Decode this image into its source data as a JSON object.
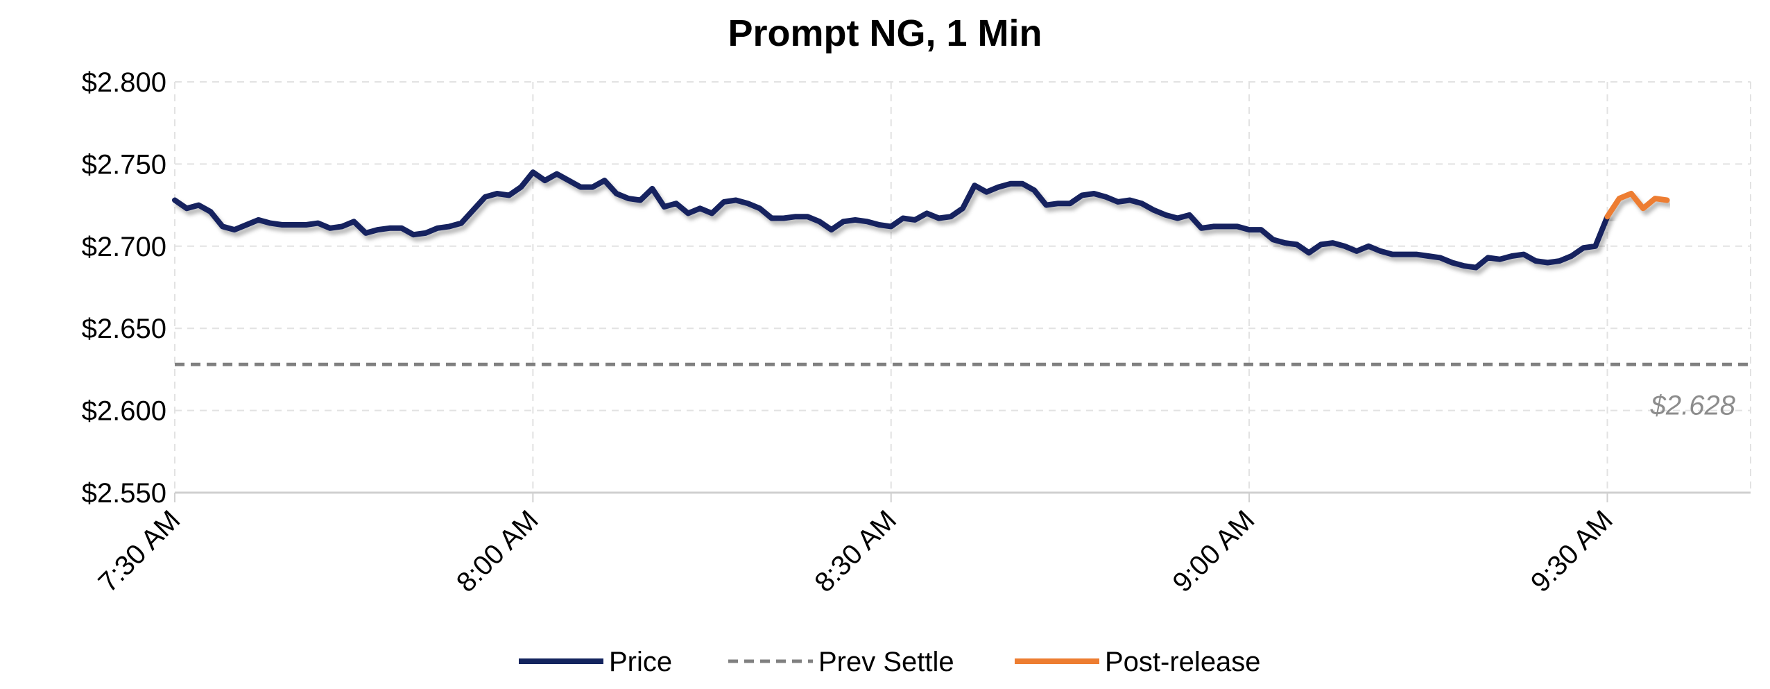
{
  "chart_data": {
    "type": "line",
    "title": "Prompt NG, 1 Min",
    "xlabel": "",
    "ylabel": "",
    "ylim": [
      2.55,
      2.8
    ],
    "yticks": [
      2.8,
      2.75,
      2.7,
      2.65,
      2.6,
      2.55
    ],
    "ytick_labels": [
      "$2.800",
      "$2.750",
      "$2.700",
      "$2.650",
      "$2.600",
      "$2.550"
    ],
    "x_unit": "minutes",
    "xlim": [
      "7:30 AM",
      "9:42 AM"
    ],
    "xticks": [
      "7:30 AM",
      "8:00 AM",
      "8:30 AM",
      "9:00 AM",
      "9:30 AM"
    ],
    "grid": true,
    "legend": "bottom",
    "series": [
      {
        "name": "Price",
        "color": "#14245e",
        "x": [
          "7:30 AM",
          "7:31 AM",
          "7:32 AM",
          "7:33 AM",
          "7:34 AM",
          "7:35 AM",
          "7:36 AM",
          "7:37 AM",
          "7:38 AM",
          "7:39 AM",
          "7:40 AM",
          "7:41 AM",
          "7:42 AM",
          "7:43 AM",
          "7:44 AM",
          "7:45 AM",
          "7:46 AM",
          "7:47 AM",
          "7:48 AM",
          "7:49 AM",
          "7:50 AM",
          "7:51 AM",
          "7:52 AM",
          "7:53 AM",
          "7:54 AM",
          "7:55 AM",
          "7:56 AM",
          "7:57 AM",
          "7:58 AM",
          "7:59 AM",
          "8:00 AM",
          "8:01 AM",
          "8:02 AM",
          "8:03 AM",
          "8:04 AM",
          "8:05 AM",
          "8:06 AM",
          "8:07 AM",
          "8:08 AM",
          "8:09 AM",
          "8:10 AM",
          "8:11 AM",
          "8:12 AM",
          "8:13 AM",
          "8:14 AM",
          "8:15 AM",
          "8:16 AM",
          "8:17 AM",
          "8:18 AM",
          "8:19 AM",
          "8:20 AM",
          "8:21 AM",
          "8:22 AM",
          "8:23 AM",
          "8:24 AM",
          "8:25 AM",
          "8:26 AM",
          "8:27 AM",
          "8:28 AM",
          "8:29 AM",
          "8:30 AM",
          "8:31 AM",
          "8:32 AM",
          "8:33 AM",
          "8:34 AM",
          "8:35 AM",
          "8:36 AM",
          "8:37 AM",
          "8:38 AM",
          "8:39 AM",
          "8:40 AM",
          "8:41 AM",
          "8:42 AM",
          "8:43 AM",
          "8:44 AM",
          "8:45 AM",
          "8:46 AM",
          "8:47 AM",
          "8:48 AM",
          "8:49 AM",
          "8:50 AM",
          "8:51 AM",
          "8:52 AM",
          "8:53 AM",
          "8:54 AM",
          "8:55 AM",
          "8:56 AM",
          "8:57 AM",
          "8:58 AM",
          "8:59 AM",
          "9:00 AM",
          "9:01 AM",
          "9:02 AM",
          "9:03 AM",
          "9:04 AM",
          "9:05 AM",
          "9:06 AM",
          "9:07 AM",
          "9:08 AM",
          "9:09 AM",
          "9:10 AM",
          "9:11 AM",
          "9:12 AM",
          "9:13 AM",
          "9:14 AM",
          "9:15 AM",
          "9:16 AM",
          "9:17 AM",
          "9:18 AM",
          "9:19 AM",
          "9:20 AM",
          "9:21 AM",
          "9:22 AM",
          "9:23 AM",
          "9:24 AM",
          "9:25 AM",
          "9:26 AM",
          "9:27 AM",
          "9:28 AM",
          "9:29 AM",
          "9:30 AM"
        ],
        "values": [
          2.728,
          2.723,
          2.725,
          2.721,
          2.712,
          2.71,
          2.713,
          2.716,
          2.714,
          2.713,
          2.713,
          2.713,
          2.714,
          2.711,
          2.712,
          2.715,
          2.708,
          2.71,
          2.711,
          2.711,
          2.707,
          2.708,
          2.711,
          2.712,
          2.714,
          2.722,
          2.73,
          2.732,
          2.731,
          2.736,
          2.745,
          2.74,
          2.744,
          2.74,
          2.736,
          2.736,
          2.74,
          2.732,
          2.729,
          2.728,
          2.735,
          2.724,
          2.726,
          2.72,
          2.723,
          2.72,
          2.727,
          2.728,
          2.726,
          2.723,
          2.717,
          2.717,
          2.718,
          2.718,
          2.715,
          2.71,
          2.715,
          2.716,
          2.715,
          2.713,
          2.712,
          2.717,
          2.716,
          2.72,
          2.717,
          2.718,
          2.723,
          2.737,
          2.733,
          2.736,
          2.738,
          2.738,
          2.734,
          2.725,
          2.726,
          2.726,
          2.731,
          2.732,
          2.73,
          2.727,
          2.728,
          2.726,
          2.722,
          2.719,
          2.717,
          2.719,
          2.711,
          2.712,
          2.712,
          2.712,
          2.71,
          2.71,
          2.704,
          2.702,
          2.701,
          2.696,
          2.701,
          2.702,
          2.7,
          2.697,
          2.7,
          2.697,
          2.695,
          2.695,
          2.695,
          2.694,
          2.693,
          2.69,
          2.688,
          2.687,
          2.693,
          2.692,
          2.694,
          2.695,
          2.691,
          2.69,
          2.691,
          2.694,
          2.699,
          2.7,
          2.718
        ]
      },
      {
        "name": "Prev Settle",
        "color": "#808080",
        "constant": 2.628
      },
      {
        "name": "Post-release",
        "color": "#ed7d31",
        "x": [
          "9:30 AM",
          "9:31 AM",
          "9:32 AM",
          "9:33 AM",
          "9:34 AM",
          "9:35 AM"
        ],
        "values": [
          2.718,
          2.729,
          2.732,
          2.723,
          2.729,
          2.728
        ]
      }
    ],
    "annotations": [
      {
        "text": "$2.628",
        "value": 2.628,
        "color": "#8c8c8c"
      }
    ]
  }
}
